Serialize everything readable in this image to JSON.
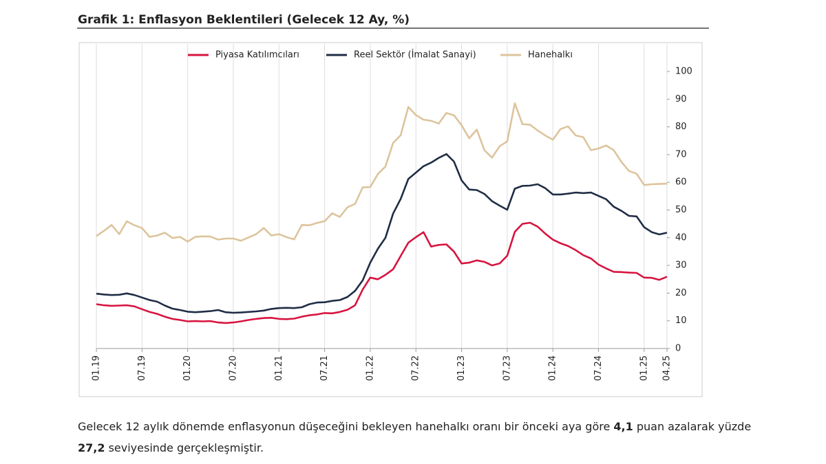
{
  "chart_data": {
    "type": "line",
    "title": "Grafik 1: Enflasyon Beklentileri (Gelecek 12 Ay, %)",
    "categories": [
      "01.19",
      null,
      null,
      null,
      null,
      null,
      "07.19",
      null,
      null,
      null,
      null,
      null,
      "01.20",
      null,
      null,
      null,
      null,
      null,
      "07.20",
      null,
      null,
      null,
      null,
      null,
      "01.21",
      null,
      null,
      null,
      null,
      null,
      "07.21",
      null,
      null,
      null,
      null,
      null,
      "01.22",
      null,
      null,
      null,
      null,
      null,
      "07.22",
      null,
      null,
      null,
      null,
      null,
      "01.23",
      null,
      null,
      null,
      null,
      null,
      "07.23",
      null,
      null,
      null,
      null,
      null,
      "01.24",
      null,
      null,
      null,
      null,
      null,
      "07.24",
      null,
      null,
      null,
      null,
      null,
      "01.25",
      null,
      null,
      "04.25"
    ],
    "series": [
      {
        "name": "Piyasa Katılımcıları",
        "color": "#d7143f",
        "values": [
          16,
          15.6,
          15.4,
          15.5,
          15.6,
          15.2,
          14.2,
          13.2,
          12.5,
          11.5,
          10.7,
          10.3,
          9.8,
          9.9,
          9.8,
          9.9,
          9.4,
          9.2,
          9.4,
          9.8,
          10.3,
          10.7,
          11,
          11.1,
          10.7,
          10.6,
          10.8,
          11.5,
          12,
          12.3,
          12.8,
          12.7,
          13.2,
          14,
          15.6,
          21.3,
          25.6,
          25,
          26.6,
          28.6,
          33.4,
          38.2,
          40.2,
          42,
          36.8,
          37.4,
          37.6,
          35,
          30.7,
          31,
          31.8,
          31.3,
          30,
          30.7,
          33.5,
          42.1,
          45,
          45.4,
          44,
          41.5,
          39.3,
          38,
          37,
          35.5,
          33.7,
          32.5,
          30.3,
          28.9,
          27.7,
          27.6,
          27.4,
          27.3,
          25.6,
          25.5,
          24.8,
          25.9
        ]
      },
      {
        "name": "Reel Sektör (İmalat Sanayi)",
        "color": "#1f2d45",
        "values": [
          19.8,
          19.5,
          19.3,
          19.4,
          19.9,
          19.3,
          18.4,
          17.5,
          16.9,
          15.5,
          14.4,
          13.9,
          13.3,
          13.1,
          13.3,
          13.5,
          13.9,
          13.1,
          12.9,
          13,
          13.2,
          13.4,
          13.7,
          14.3,
          14.6,
          14.7,
          14.6,
          14.9,
          16,
          16.6,
          16.7,
          17.2,
          17.5,
          18.6,
          20.8,
          24.6,
          31,
          36,
          40,
          48.7,
          54,
          61.2,
          63.5,
          65.8,
          67.1,
          68.8,
          70.2,
          67.5,
          60.7,
          57.4,
          57.2,
          55.8,
          53.2,
          51.6,
          50.1,
          57.7,
          58.7,
          58.8,
          59.3,
          57.9,
          55.6,
          55.6,
          55.9,
          56.3,
          56.1,
          56.3,
          55.1,
          53.9,
          51.2,
          49.7,
          47.9,
          47.7,
          43.8,
          42,
          41.2,
          41.8
        ]
      },
      {
        "name": "Hanehalkı",
        "color": "#dcc49c",
        "values": [
          40.6,
          42.5,
          44.6,
          41.3,
          45.9,
          44.5,
          43.5,
          40.3,
          40.8,
          41.8,
          39.9,
          40.3,
          38.6,
          40.3,
          40.5,
          40.4,
          39.3,
          39.7,
          39.7,
          38.9,
          40.1,
          41.3,
          43.5,
          40.8,
          41.3,
          40.2,
          39.4,
          44.6,
          44.5,
          45.3,
          46,
          48.8,
          47.5,
          51,
          52.2,
          58.2,
          58.3,
          63,
          65.7,
          74.2,
          77,
          87.2,
          84.3,
          82.6,
          82.2,
          81.2,
          85,
          84.2,
          80.6,
          75.9,
          79,
          71.6,
          68.9,
          73,
          74.8,
          88.5,
          81,
          80.8,
          78.7,
          76.9,
          75.4,
          79.2,
          80.2,
          76.9,
          76.3,
          71.6,
          72.2,
          73.3,
          71.6,
          67.4,
          64.1,
          63.1,
          59,
          59.3,
          59.4,
          59.5
        ]
      }
    ],
    "ylim": [
      0,
      100
    ],
    "yticks": [
      0,
      10,
      20,
      30,
      40,
      50,
      60,
      70,
      80,
      90,
      100
    ],
    "grid": "x"
  },
  "paragraph": [
    "Gelecek 12 aylık dönemde enflasyonun düşeceğini bekleyen hanehalkı oranı bir önceki aya göre ",
    "4,1",
    " puan azalarak yüzde ",
    "27,2",
    " seviyesinde gerçekleşmiştir."
  ]
}
